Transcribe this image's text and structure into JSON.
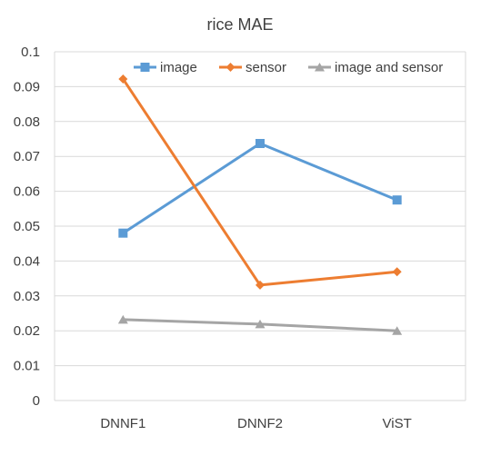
{
  "chart_data": {
    "type": "line",
    "title": "rice MAE",
    "xlabel": "",
    "ylabel": "",
    "categories": [
      "DNNF1",
      "DNNF2",
      "ViST"
    ],
    "ylim": [
      0,
      0.1
    ],
    "y_ticks": [
      "0",
      "0.01",
      "0.02",
      "0.03",
      "0.04",
      "0.05",
      "0.06",
      "0.07",
      "0.08",
      "0.09",
      "0.1"
    ],
    "grid": true,
    "legend_position": "top",
    "series": [
      {
        "name": "image",
        "values": [
          0.048,
          0.0737,
          0.0575
        ],
        "color": "#5b9bd5",
        "marker": "square"
      },
      {
        "name": "sensor",
        "values": [
          0.0922,
          0.0331,
          0.0369
        ],
        "color": "#ed7d31",
        "marker": "diamond"
      },
      {
        "name": "image and sensor",
        "values": [
          0.0232,
          0.0219,
          0.02
        ],
        "color": "#a5a5a5",
        "marker": "triangle"
      }
    ]
  }
}
